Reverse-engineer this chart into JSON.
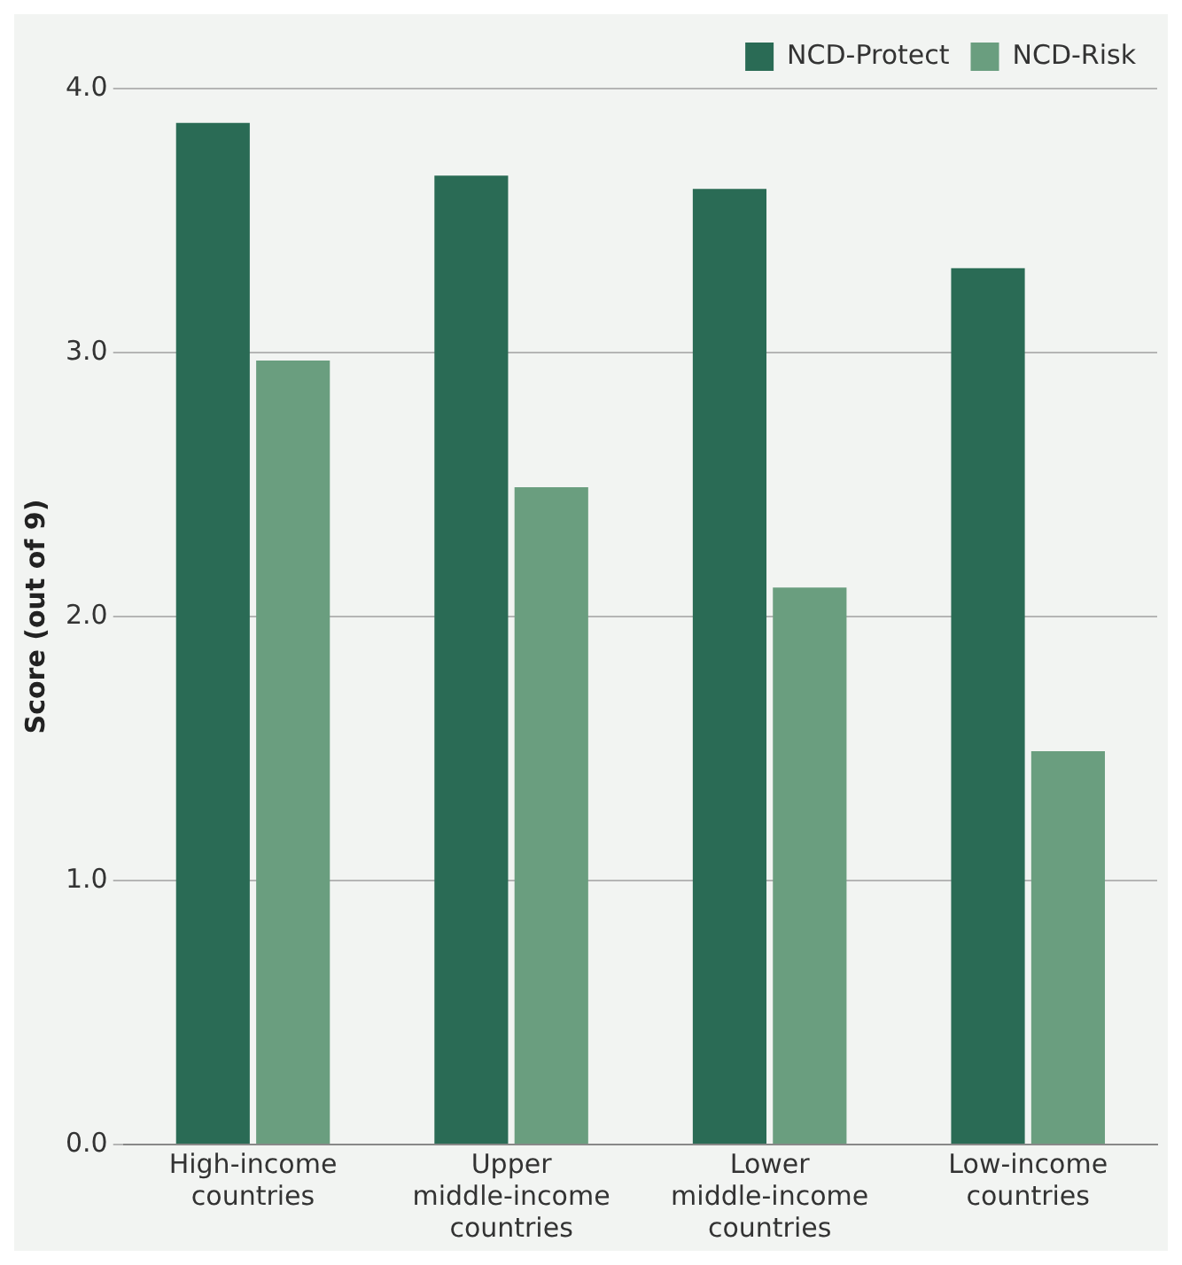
{
  "chart_data": {
    "type": "bar",
    "ylabel": "Score (out of 9)",
    "categories": [
      "High-income countries",
      "Upper middle-income countries",
      "Lower middle-income countries",
      "Low-income countries"
    ],
    "series": [
      {
        "name": "NCD-Protect",
        "color": "#2a6b55",
        "values": [
          3.87,
          3.67,
          3.62,
          3.32
        ]
      },
      {
        "name": "NCD-Risk",
        "color": "#6a9e7f",
        "values": [
          2.97,
          2.49,
          2.11,
          1.49
        ]
      }
    ],
    "ylim": [
      0,
      4
    ],
    "yticks": [
      {
        "value": 0,
        "label": "0.0"
      },
      {
        "value": 1,
        "label": "1.0"
      },
      {
        "value": 2,
        "label": "2.0"
      },
      {
        "value": 3,
        "label": "3.0"
      },
      {
        "value": 4,
        "label": "4.0"
      }
    ],
    "grid": "y",
    "legend": "top right"
  }
}
